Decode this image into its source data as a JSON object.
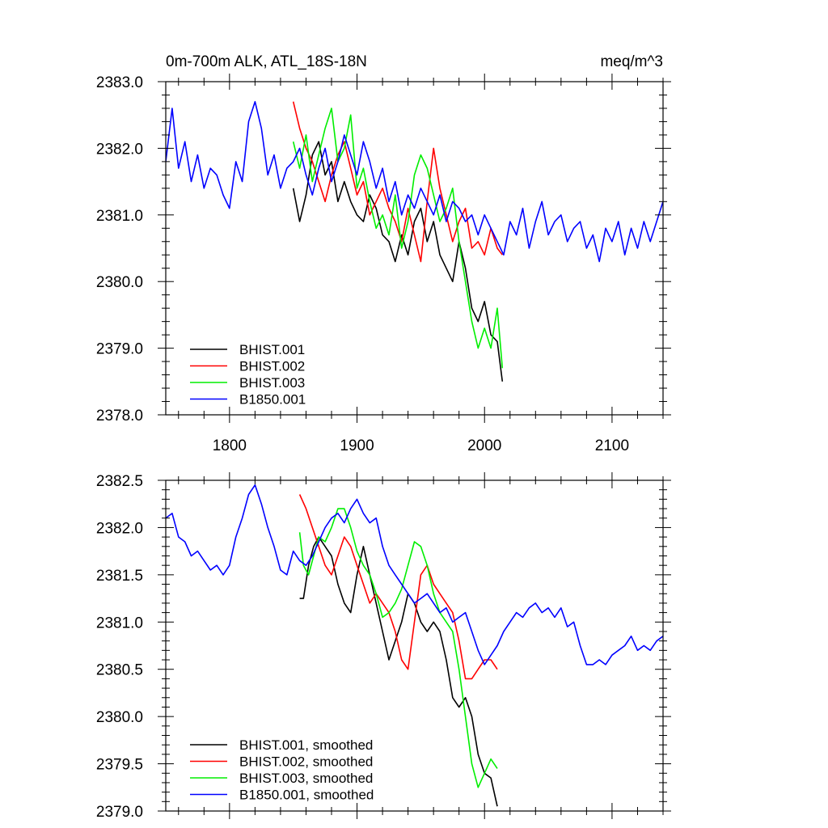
{
  "chart_data": [
    {
      "type": "line",
      "title": "0m-700m ALK, ATL_18S-18N",
      "units": "meq/m^3",
      "xlabel": "",
      "ylabel": "",
      "xlim": [
        1750,
        2140
      ],
      "ylim": [
        2378.0,
        2383.0
      ],
      "x_ticks": [
        1800,
        1900,
        2000,
        2100
      ],
      "x_tick_labels": [
        "1800",
        "1900",
        "2000",
        "2100"
      ],
      "y_ticks": [
        2378.0,
        2379.0,
        2380.0,
        2381.0,
        2382.0,
        2383.0
      ],
      "y_tick_labels": [
        "2378.0",
        "2379.0",
        "2380.0",
        "2381.0",
        "2382.0",
        "2383.0"
      ],
      "legend_position": "bottom-left",
      "series": [
        {
          "name": "BHIST.001",
          "color": "#000000",
          "x": [
            1850,
            1855,
            1860,
            1865,
            1870,
            1875,
            1880,
            1885,
            1890,
            1895,
            1900,
            1905,
            1910,
            1915,
            1920,
            1925,
            1930,
            1935,
            1940,
            1945,
            1950,
            1955,
            1960,
            1965,
            1970,
            1975,
            1980,
            1985,
            1990,
            1995,
            2000,
            2005,
            2010,
            2014
          ],
          "values": [
            2381.4,
            2380.9,
            2381.3,
            2381.9,
            2382.1,
            2381.6,
            2381.8,
            2381.2,
            2381.5,
            2381.2,
            2381.0,
            2380.9,
            2381.3,
            2381.1,
            2380.7,
            2380.6,
            2380.3,
            2380.7,
            2380.4,
            2380.9,
            2381.1,
            2380.6,
            2380.9,
            2380.4,
            2380.2,
            2380.0,
            2380.6,
            2380.2,
            2379.6,
            2379.4,
            2379.7,
            2379.2,
            2379.1,
            2378.5
          ]
        },
        {
          "name": "BHIST.002",
          "color": "#ff0000",
          "x": [
            1850,
            1855,
            1860,
            1865,
            1870,
            1875,
            1880,
            1885,
            1890,
            1895,
            1900,
            1905,
            1910,
            1915,
            1920,
            1925,
            1930,
            1935,
            1940,
            1945,
            1950,
            1955,
            1960,
            1965,
            1970,
            1975,
            1980,
            1985,
            1990,
            1995,
            2000,
            2005,
            2010,
            2014
          ],
          "values": [
            2382.7,
            2382.3,
            2382.0,
            2381.8,
            2381.5,
            2381.2,
            2381.6,
            2381.9,
            2382.1,
            2381.7,
            2381.3,
            2381.5,
            2381.0,
            2381.2,
            2381.4,
            2381.1,
            2380.9,
            2380.6,
            2381.1,
            2380.7,
            2380.3,
            2381.2,
            2382.0,
            2381.4,
            2381.0,
            2380.6,
            2380.9,
            2381.1,
            2380.5,
            2380.6,
            2380.4,
            2380.8,
            2380.5,
            2380.4
          ]
        },
        {
          "name": "BHIST.003",
          "color": "#00ee00",
          "x": [
            1850,
            1855,
            1860,
            1865,
            1870,
            1875,
            1880,
            1885,
            1890,
            1895,
            1900,
            1905,
            1910,
            1915,
            1920,
            1925,
            1930,
            1935,
            1940,
            1945,
            1950,
            1955,
            1960,
            1965,
            1970,
            1975,
            1980,
            1985,
            1990,
            1995,
            2000,
            2005,
            2010,
            2014
          ],
          "values": [
            2382.1,
            2381.7,
            2382.2,
            2381.5,
            2381.9,
            2382.3,
            2382.6,
            2381.8,
            2382.0,
            2382.5,
            2381.4,
            2381.7,
            2381.2,
            2380.8,
            2381.0,
            2380.7,
            2381.3,
            2380.5,
            2380.9,
            2381.6,
            2381.9,
            2381.7,
            2381.3,
            2380.9,
            2381.1,
            2381.4,
            2380.6,
            2380.0,
            2379.4,
            2379.0,
            2379.3,
            2379.0,
            2379.6,
            2378.7
          ]
        },
        {
          "name": "B1850.001",
          "color": "#0000ff",
          "x": [
            1750,
            1755,
            1760,
            1765,
            1770,
            1775,
            1780,
            1785,
            1790,
            1795,
            1800,
            1805,
            1810,
            1815,
            1820,
            1825,
            1830,
            1835,
            1840,
            1845,
            1850,
            1855,
            1860,
            1865,
            1870,
            1875,
            1880,
            1885,
            1890,
            1895,
            1900,
            1905,
            1910,
            1915,
            1920,
            1925,
            1930,
            1935,
            1940,
            1945,
            1950,
            1955,
            1960,
            1965,
            1970,
            1975,
            1980,
            1985,
            1990,
            1995,
            2000,
            2005,
            2010,
            2015,
            2020,
            2025,
            2030,
            2035,
            2040,
            2045,
            2050,
            2055,
            2060,
            2065,
            2070,
            2075,
            2080,
            2085,
            2090,
            2095,
            2100,
            2105,
            2110,
            2115,
            2120,
            2125,
            2130,
            2135,
            2140
          ],
          "values": [
            2381.8,
            2382.6,
            2381.7,
            2382.1,
            2381.5,
            2381.9,
            2381.4,
            2381.7,
            2381.6,
            2381.3,
            2381.1,
            2381.8,
            2381.5,
            2382.4,
            2382.7,
            2382.3,
            2381.6,
            2381.9,
            2381.4,
            2381.7,
            2381.8,
            2382.0,
            2381.6,
            2381.3,
            2381.7,
            2382.0,
            2381.5,
            2381.8,
            2382.2,
            2381.9,
            2381.6,
            2382.1,
            2381.8,
            2381.4,
            2381.7,
            2381.2,
            2381.5,
            2381.0,
            2381.3,
            2381.1,
            2381.4,
            2381.2,
            2381.0,
            2381.3,
            2380.9,
            2381.2,
            2381.1,
            2380.9,
            2381.0,
            2380.7,
            2381.0,
            2380.8,
            2380.6,
            2380.4,
            2380.9,
            2380.7,
            2381.1,
            2380.5,
            2380.9,
            2381.2,
            2380.7,
            2380.9,
            2381.0,
            2380.6,
            2380.8,
            2380.9,
            2380.5,
            2380.7,
            2380.3,
            2380.8,
            2380.6,
            2380.9,
            2380.4,
            2380.8,
            2380.5,
            2380.9,
            2380.6,
            2380.9,
            2381.2
          ]
        }
      ]
    },
    {
      "type": "line",
      "title": "",
      "xlabel": "",
      "ylabel": "",
      "xlim": [
        1750,
        2140
      ],
      "ylim": [
        2379.0,
        2382.5
      ],
      "x_ticks": [
        1800,
        1900,
        2000,
        2100
      ],
      "y_ticks": [
        2379.0,
        2379.5,
        2380.0,
        2380.5,
        2381.0,
        2381.5,
        2382.0,
        2382.5
      ],
      "y_tick_labels": [
        "2379.0",
        "2379.5",
        "2380.0",
        "2380.5",
        "2381.0",
        "2381.5",
        "2382.0",
        "2382.5"
      ],
      "legend_position": "bottom-left",
      "series": [
        {
          "name": "BHIST.001, smoothed",
          "color": "#000000",
          "x": [
            1855,
            1858,
            1862,
            1866,
            1870,
            1875,
            1880,
            1885,
            1890,
            1895,
            1900,
            1905,
            1910,
            1915,
            1920,
            1925,
            1930,
            1935,
            1940,
            1945,
            1950,
            1955,
            1960,
            1965,
            1970,
            1975,
            1980,
            1985,
            1990,
            1995,
            2000,
            2005,
            2010
          ],
          "values": [
            2381.25,
            2381.25,
            2381.6,
            2381.8,
            2381.9,
            2381.8,
            2381.7,
            2381.4,
            2381.2,
            2381.1,
            2381.5,
            2381.8,
            2381.5,
            2381.2,
            2380.9,
            2380.6,
            2380.8,
            2381.0,
            2381.3,
            2381.2,
            2381.0,
            2380.9,
            2381.0,
            2380.9,
            2380.6,
            2380.2,
            2380.1,
            2380.2,
            2380.0,
            2379.6,
            2379.4,
            2379.35,
            2379.05
          ]
        },
        {
          "name": "BHIST.002, smoothed",
          "color": "#ff0000",
          "x": [
            1855,
            1860,
            1865,
            1870,
            1875,
            1880,
            1885,
            1890,
            1895,
            1900,
            1905,
            1910,
            1915,
            1920,
            1925,
            1930,
            1935,
            1940,
            1945,
            1950,
            1955,
            1960,
            1965,
            1970,
            1975,
            1980,
            1985,
            1990,
            1995,
            2000,
            2005,
            2010
          ],
          "values": [
            2382.35,
            2382.2,
            2382.0,
            2381.8,
            2381.6,
            2381.5,
            2381.7,
            2381.9,
            2381.8,
            2381.6,
            2381.4,
            2381.2,
            2381.3,
            2381.2,
            2381.1,
            2380.9,
            2380.6,
            2380.5,
            2381.0,
            2381.5,
            2381.6,
            2381.4,
            2381.3,
            2381.2,
            2381.1,
            2380.8,
            2380.4,
            2380.4,
            2380.5,
            2380.6,
            2380.6,
            2380.5
          ]
        },
        {
          "name": "BHIST.003, smoothed",
          "color": "#00ee00",
          "x": [
            1855,
            1858,
            1862,
            1866,
            1870,
            1875,
            1880,
            1885,
            1890,
            1895,
            1900,
            1905,
            1910,
            1915,
            1920,
            1925,
            1930,
            1935,
            1940,
            1945,
            1950,
            1955,
            1960,
            1965,
            1970,
            1975,
            1980,
            1985,
            1990,
            1995,
            2000,
            2005,
            2010
          ],
          "values": [
            2381.95,
            2381.6,
            2381.5,
            2381.7,
            2381.9,
            2381.85,
            2382.0,
            2382.2,
            2382.2,
            2382.0,
            2381.75,
            2381.6,
            2381.5,
            2381.3,
            2381.05,
            2381.1,
            2381.2,
            2381.35,
            2381.6,
            2381.85,
            2381.8,
            2381.6,
            2381.3,
            2381.1,
            2381.0,
            2380.9,
            2380.5,
            2380.0,
            2379.5,
            2379.25,
            2379.4,
            2379.55,
            2379.45
          ]
        },
        {
          "name": "B1850.001, smoothed",
          "color": "#0000ff",
          "x": [
            1750,
            1755,
            1760,
            1765,
            1770,
            1775,
            1780,
            1785,
            1790,
            1795,
            1800,
            1805,
            1810,
            1815,
            1820,
            1825,
            1830,
            1835,
            1840,
            1845,
            1850,
            1855,
            1860,
            1865,
            1870,
            1875,
            1880,
            1885,
            1890,
            1895,
            1900,
            1905,
            1910,
            1915,
            1920,
            1925,
            1930,
            1935,
            1940,
            1945,
            1950,
            1955,
            1960,
            1965,
            1970,
            1975,
            1980,
            1985,
            1990,
            1995,
            2000,
            2005,
            2010,
            2015,
            2020,
            2025,
            2030,
            2035,
            2040,
            2045,
            2050,
            2055,
            2060,
            2065,
            2070,
            2075,
            2080,
            2085,
            2090,
            2095,
            2100,
            2105,
            2110,
            2115,
            2120,
            2125,
            2130,
            2135,
            2140
          ],
          "values": [
            2382.1,
            2382.15,
            2381.9,
            2381.85,
            2381.7,
            2381.75,
            2381.65,
            2381.55,
            2381.6,
            2381.5,
            2381.6,
            2381.9,
            2382.1,
            2382.35,
            2382.45,
            2382.25,
            2382.0,
            2381.8,
            2381.55,
            2381.5,
            2381.75,
            2381.65,
            2381.6,
            2381.7,
            2381.85,
            2382.0,
            2382.1,
            2382.15,
            2382.05,
            2382.2,
            2382.3,
            2382.15,
            2382.05,
            2382.1,
            2381.8,
            2381.6,
            2381.5,
            2381.4,
            2381.3,
            2381.2,
            2381.25,
            2381.3,
            2381.2,
            2381.1,
            2381.15,
            2381.0,
            2381.05,
            2381.1,
            2380.9,
            2380.7,
            2380.55,
            2380.65,
            2380.75,
            2380.9,
            2381.0,
            2381.1,
            2381.05,
            2381.15,
            2381.2,
            2381.1,
            2381.15,
            2381.05,
            2381.15,
            2380.95,
            2381.0,
            2380.75,
            2380.55,
            2380.55,
            2380.6,
            2380.55,
            2380.65,
            2380.7,
            2380.75,
            2380.85,
            2380.7,
            2380.75,
            2380.7,
            2380.8,
            2380.85
          ]
        }
      ]
    }
  ]
}
